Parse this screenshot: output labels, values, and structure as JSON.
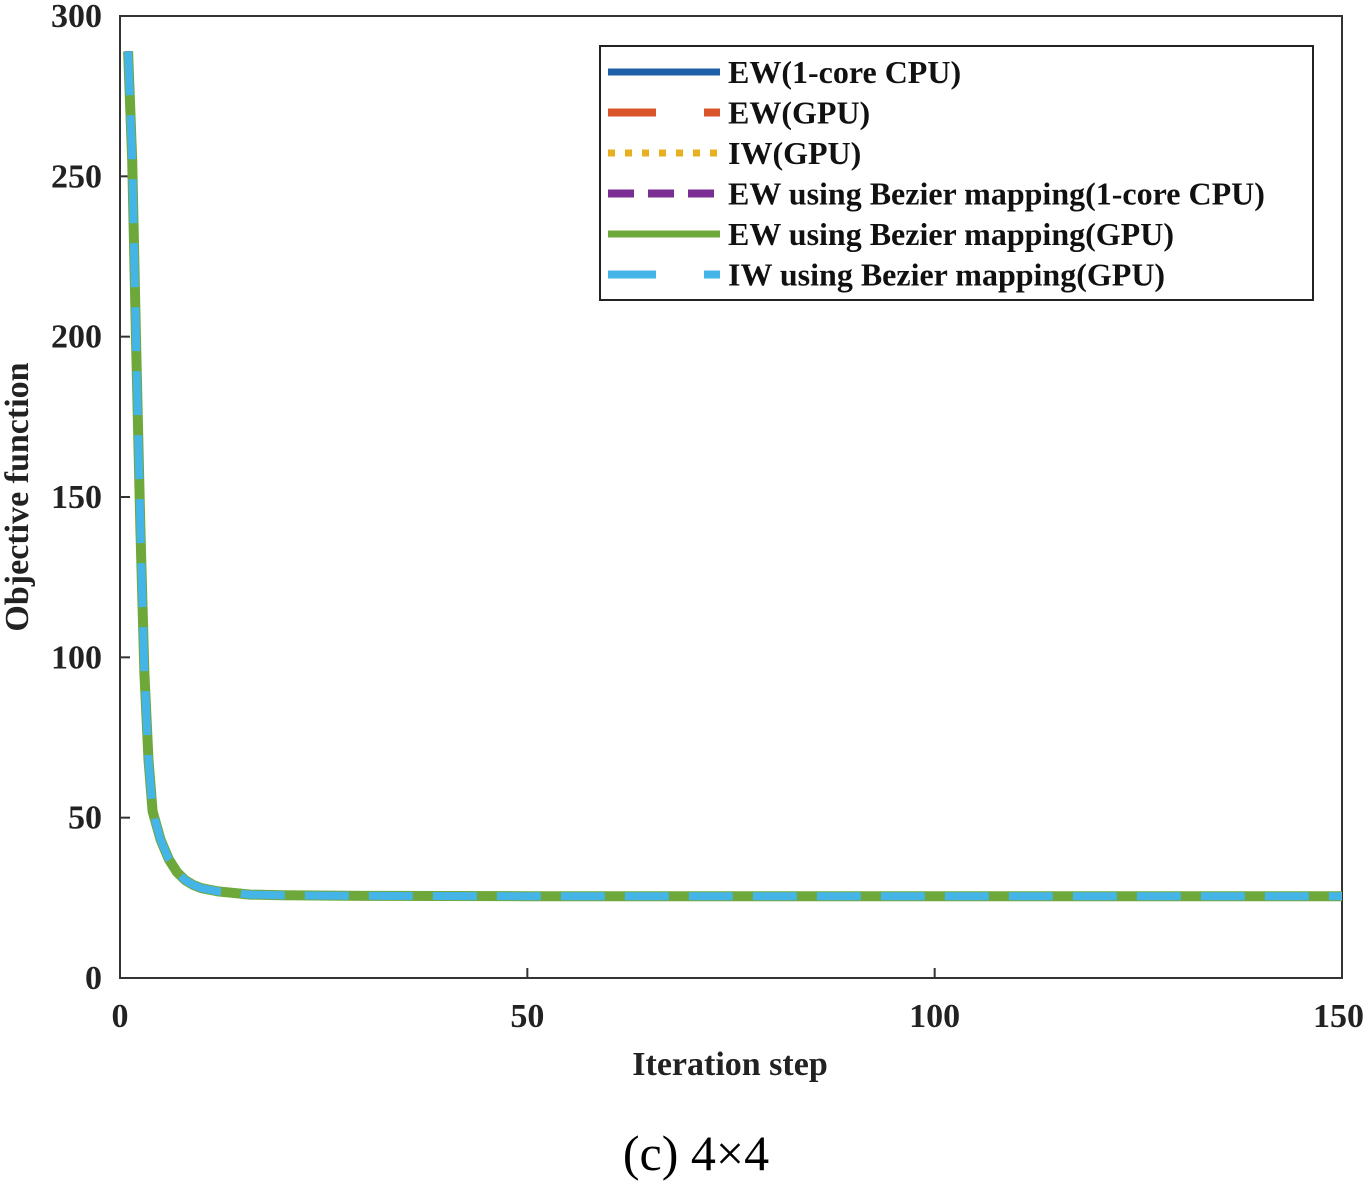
{
  "chart_data": {
    "type": "line",
    "caption": "(c) 4×4",
    "xlabel": "Iteration step",
    "ylabel": "Objective function",
    "xlim": [
      0,
      150
    ],
    "ylim": [
      0,
      300
    ],
    "xticks": [
      0,
      50,
      100,
      150
    ],
    "yticks": [
      0,
      50,
      100,
      150,
      200,
      250,
      300
    ],
    "grid": false,
    "legend_position": "top-right",
    "x": [
      1,
      1.5,
      2,
      2.5,
      3,
      3.5,
      4,
      5,
      6,
      7,
      8,
      9,
      10,
      12,
      14,
      16,
      20,
      30,
      50,
      75,
      100,
      125,
      150
    ],
    "series": [
      {
        "name": "EW(1-core CPU)",
        "color": "#1f5fa8",
        "dash": "solid",
        "values": [
          289,
          255,
          195,
          140,
          95,
          68,
          52,
          43,
          37,
          33,
          30.5,
          29,
          28,
          27,
          26.5,
          26,
          25.8,
          25.6,
          25.5,
          25.5,
          25.5,
          25.5,
          25.5
        ]
      },
      {
        "name": "EW(GPU)",
        "color": "#d9542b",
        "dash": "dashed-long",
        "values": [
          289,
          255,
          195,
          140,
          95,
          68,
          52,
          43,
          37,
          33,
          30.5,
          29,
          28,
          27,
          26.5,
          26,
          25.8,
          25.6,
          25.5,
          25.5,
          25.5,
          25.5,
          25.5
        ]
      },
      {
        "name": "IW(GPU)",
        "color": "#e8b020",
        "dash": "dotted",
        "values": [
          289,
          255,
          195,
          140,
          95,
          68,
          52,
          43,
          37,
          33,
          30.5,
          29,
          28,
          27,
          26.5,
          26,
          25.8,
          25.6,
          25.5,
          25.5,
          25.5,
          25.5,
          25.5
        ]
      },
      {
        "name": "EW using Bezier mapping(1-core CPU)",
        "color": "#7a2e91",
        "dash": "dashed",
        "values": [
          289,
          255,
          195,
          140,
          95,
          68,
          52,
          43,
          37,
          33,
          30.5,
          29,
          28,
          27,
          26.5,
          26,
          25.8,
          25.6,
          25.5,
          25.5,
          25.5,
          25.5,
          25.5
        ]
      },
      {
        "name": "EW using Bezier mapping(GPU)",
        "color": "#6ea83a",
        "dash": "solid",
        "values": [
          289,
          255,
          195,
          140,
          95,
          68,
          52,
          43,
          37,
          33,
          30.5,
          29,
          28,
          27,
          26.5,
          26,
          25.8,
          25.6,
          25.5,
          25.5,
          25.5,
          25.5,
          25.5
        ]
      },
      {
        "name": "IW using Bezier mapping(GPU)",
        "color": "#45b4e6",
        "dash": "dashed-long",
        "values": [
          289,
          255,
          195,
          140,
          95,
          68,
          52,
          43,
          37,
          33,
          30.5,
          29,
          28,
          27,
          26.5,
          26,
          25.8,
          25.6,
          25.5,
          25.5,
          25.5,
          25.5,
          25.5
        ]
      }
    ]
  }
}
